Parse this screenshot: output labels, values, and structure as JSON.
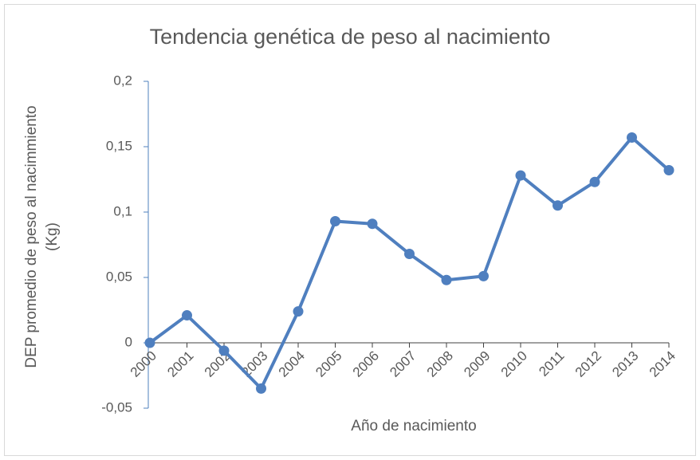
{
  "chart_data": {
    "type": "line",
    "title": "Tendencia genética de peso al nacimiento",
    "x_label": "Año de nacimiento",
    "y_label_lines": [
      "DEP promedio de peso al nacimmiento",
      "(Kg)"
    ],
    "categories": [
      "2000",
      "2001",
      "2002",
      "2003",
      "2004",
      "2005",
      "2006",
      "2007",
      "2008",
      "2009",
      "2010",
      "2011",
      "2012",
      "2013",
      "2014"
    ],
    "series": [
      {
        "name": "DEP",
        "color": "#4f7fbf",
        "values": [
          0,
          0.021,
          -0.006,
          -0.035,
          0.024,
          0.093,
          0.091,
          0.068,
          0.048,
          0.051,
          0.128,
          0.105,
          0.123,
          0.157,
          0.132
        ]
      }
    ],
    "ylim": [
      -0.05,
      0.2
    ],
    "yticks": [
      {
        "value": -0.05,
        "label": "-0,05"
      },
      0,
      {
        "value": 0.05,
        "label": "0,05"
      },
      {
        "value": 0.1,
        "label": "0,1"
      },
      {
        "value": 0.15,
        "label": "0,15"
      },
      {
        "value": 0.2,
        "label": "0,2"
      }
    ],
    "grid": false,
    "axis_color": "#4f81bd"
  }
}
